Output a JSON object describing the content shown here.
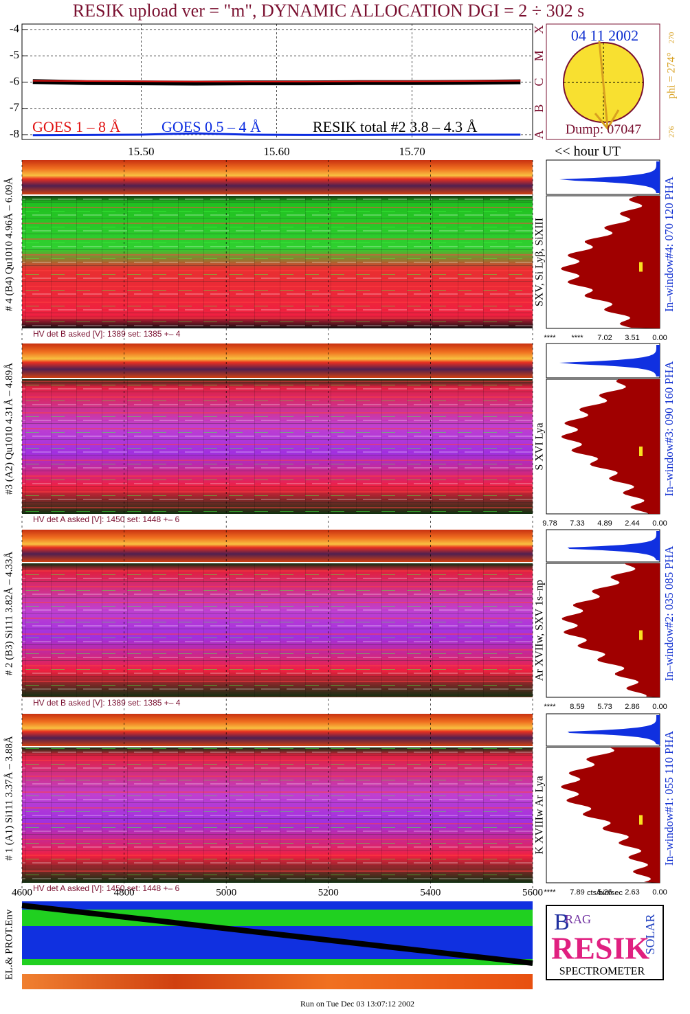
{
  "title": "RESIK upload ver = \"m\", DYNAMIC ALLOCATION  DGI =   2 ÷ 302 s",
  "chart_data": {
    "type": "line",
    "x": [
      15.42,
      15.46,
      15.5,
      15.54,
      15.58,
      15.62,
      15.66,
      15.7,
      15.74,
      15.78
    ],
    "series": [
      {
        "name": "GOES 0.5 – 4 Å",
        "color": "#0a2be0",
        "values": [
          -8.02,
          -8.01,
          -8.0,
          -7.95,
          -8.0,
          -8.01,
          -8.01,
          -8.0,
          -8.0,
          -8.0
        ]
      },
      {
        "name": "RESIK total #2  3.8 – 4.3 Å",
        "color": "#000000",
        "values": [
          -5.98,
          -6.02,
          -6.03,
          -6.04,
          -6.03,
          -6.03,
          -6.02,
          -6.02,
          -6.01,
          -5.99
        ]
      },
      {
        "name": "GOES 1 – 8 Å",
        "color": "#e01010",
        "values": [
          -5.95,
          -5.96,
          -5.97,
          -5.98,
          -5.98,
          -5.98,
          -5.97,
          -5.97,
          -5.96,
          -5.95
        ]
      }
    ],
    "xlim": [
      15.412,
      15.789
    ],
    "xticks": [
      {
        "value": 15.5,
        "label": "15.50"
      },
      {
        "value": 15.6,
        "label": "15.60"
      },
      {
        "value": 15.7,
        "label": "15.70"
      }
    ],
    "ylim": [
      -8,
      -4
    ],
    "yticks": [
      -4,
      -5,
      -6,
      -7,
      -8
    ],
    "grid": true,
    "xlabel": "<< hour UT"
  },
  "goes_classes": [
    "X",
    "M",
    "C",
    "B",
    "A"
  ],
  "sun": {
    "date": "04 11 2002",
    "phi": "phi = 274°",
    "phi_sup": "270",
    "phi_low": "276",
    "dump": "Dump: 07047"
  },
  "panels": [
    {
      "ylabel": "# 4 (B4) Qu1010 4.96Å – 6.09Å",
      "hv": "HV det B asked [V]:  1389 set:  1385 +–    4",
      "lines": "SXV, Si Lyβ, SiXIII",
      "window": "In–window#4:  070 120 PHA",
      "hist_ticks": [
        "****",
        "****",
        "7.02",
        "3.51",
        "0.00"
      ]
    },
    {
      "ylabel": "#3 (A2) Qu1010  4.31Å – 4.89Å",
      "hv": "HV det A asked [V]:  1450 set:  1448 +–    6",
      "lines": "S XVI Lya",
      "window": "In–window#3:  090 160 PHA",
      "hist_ticks": [
        "9.78",
        "7.33",
        "4.89",
        "2.44",
        "0.00"
      ]
    },
    {
      "ylabel": "# 2 (B3) Si111  3.82Å – 4.33Å",
      "hv": "HV det B asked [V]:  1389 set:  1385 +–    4",
      "lines": "Ar XVIIw,  SXV 1s–np",
      "window": "In–window#2:  035 085 PHA",
      "hist_ticks": [
        "****",
        "8.59",
        "5.73",
        "2.86",
        "0.00"
      ]
    },
    {
      "ylabel": "# 1 (A1) Si111  3.37Å – 3.88Å",
      "hv": "HV det A asked [V]:  1450 set:  1448 +–    6",
      "lines": "K XVIIIw  Ar Lya",
      "window": "In–window#1:  055 110 PHA",
      "hist_ticks": [
        "****",
        "7.89",
        "5.26",
        "2.63",
        "0.00"
      ]
    }
  ],
  "time_axis": {
    "xlim": [
      4600,
      5600
    ],
    "xticks": [
      4600,
      4800,
      5000,
      5200,
      5400,
      5600
    ]
  },
  "hist_xlabel": "cts/bin/sec",
  "bottom_ylabel": "EL.& PROT.Env",
  "logo": {
    "letters": [
      "B",
      "RAG",
      "RESIK",
      "SOLAR"
    ],
    "caption": "SPECTROMETER"
  },
  "footer": "Run on Tue Dec 03 13:07:12 2002"
}
